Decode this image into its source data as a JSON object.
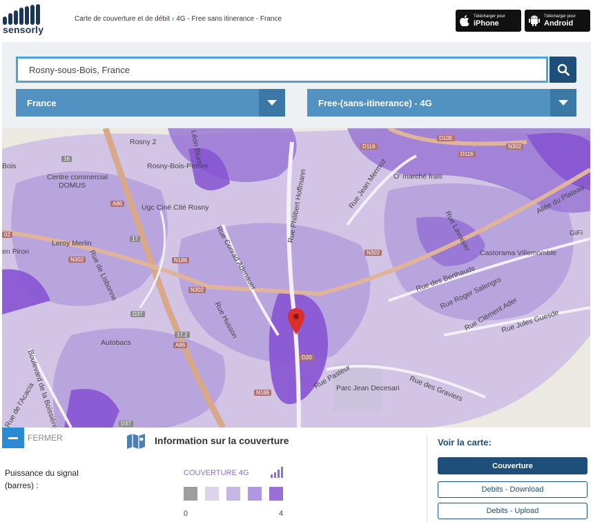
{
  "header": {
    "logo_text": "sensorly",
    "breadcrumb": [
      "Carte de couverture et de débit",
      "4G - Free sans itinerance - France"
    ],
    "breadcrumb_sep": "›",
    "stores": [
      {
        "small": "Télécharger pour",
        "big": "iPhone",
        "icon": "apple-icon"
      },
      {
        "small": "Télécharger pour",
        "big": "Android",
        "icon": "android-icon"
      }
    ]
  },
  "search": {
    "value": "Rosny-sous-Bois, France"
  },
  "selects": {
    "country": "France",
    "operator": "Free-(sans-itinerance) - 4G"
  },
  "map": {
    "labels": [
      "Rosny 2",
      "Rosny-Bois-Perrier",
      "Centre commercial",
      "DOMUS",
      "Bois",
      "Ugc Ciné Cité Rosny",
      "Leroy Merlin",
      "Rue de Lisbonne",
      "Rue Conrad Adenauer",
      "Rue Philibert Hoffmann",
      "Rue Jean Mermoz",
      "O' marché frais",
      "Allée du Plateau",
      "GiFi",
      "Castorama Villemomble",
      "Rue des Berthauds",
      "Rue Roger Salengro",
      "Rue Clément Ader",
      "Rue Jules Guesde",
      "Rue Husson",
      "Autobacs",
      "Boulevard de la Boissière",
      "Rue de l'Acacia",
      "Rue Pasteur",
      "Parc Jean Decesari",
      "Rue des Graviers",
      "en Piron",
      "Rue Lavoisier",
      "Léon Blum"
    ],
    "roads": [
      "16",
      "A86",
      "17",
      "N186",
      "N302",
      "D116",
      "D10E",
      "D37",
      "17.2",
      "D20",
      "02"
    ],
    "colors": {
      "base": "#ece8e2",
      "coverage_light": "#c9b8e6",
      "coverage_mid": "#b39ddc",
      "coverage_dark": "#9a78d6",
      "coverage_strong": "#8654d1",
      "pin": "#d9302c"
    }
  },
  "bottom": {
    "fermer": "FERMER",
    "info_title": "Information sur la couverture",
    "signal_label": "Puissance du signal (barres) :",
    "legend_title": "COUVERTURE 4G",
    "legend_min": "0",
    "legend_max": "4",
    "legend_colors": [
      "#9e9e9e",
      "#dcd3ec",
      "#c6b6e6",
      "#b097df",
      "#9a6fd8"
    ],
    "voir_title": "Voir la carte:",
    "buttons": [
      "Couverture",
      "Debits - Download",
      "Debits - Upload"
    ]
  }
}
